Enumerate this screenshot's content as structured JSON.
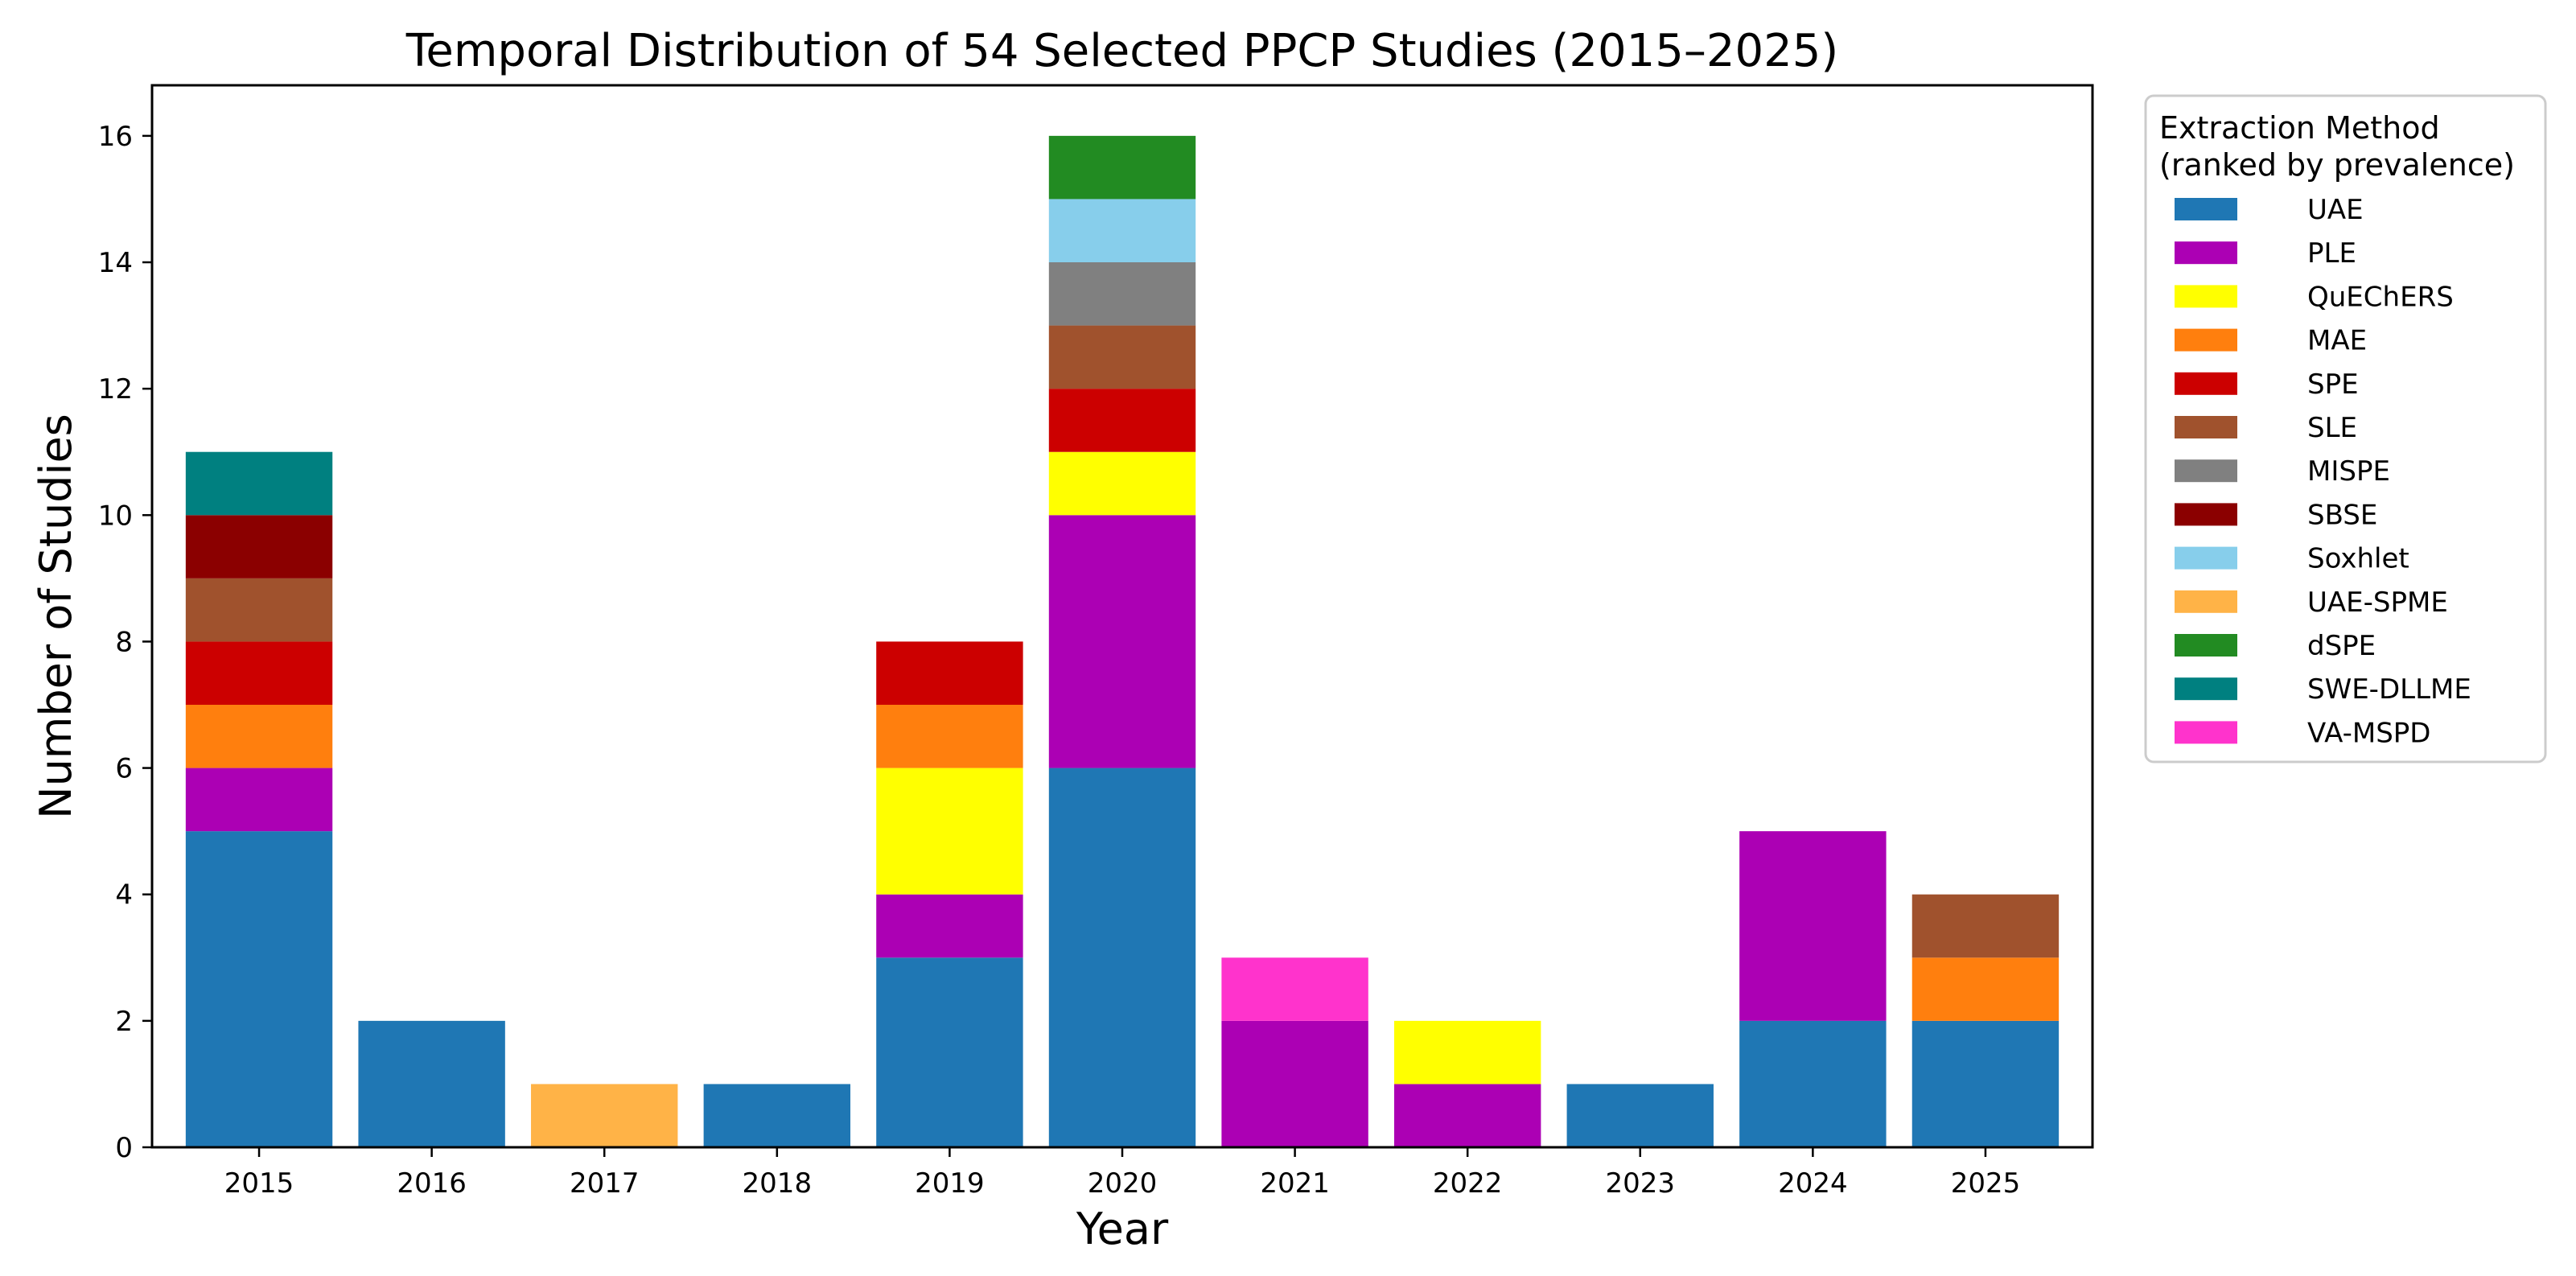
{
  "chart_data": {
    "type": "bar",
    "stacked": true,
    "title": "Temporal Distribution of 54 Selected PPCP Studies (2015–2025)",
    "xlabel": "Year",
    "ylabel": "Number of Studies",
    "ylim": [
      0,
      16.8
    ],
    "yticks": [
      0,
      2,
      4,
      6,
      8,
      10,
      12,
      14,
      16
    ],
    "categories": [
      "2015",
      "2016",
      "2017",
      "2018",
      "2019",
      "2020",
      "2021",
      "2022",
      "2023",
      "2024",
      "2025"
    ],
    "legend": {
      "title_lines": [
        "Extraction Method",
        "(ranked by prevalence)"
      ],
      "placement": "outside-right"
    },
    "series": [
      {
        "name": "UAE",
        "color": "#1f77b4",
        "values": [
          5,
          2,
          0,
          1,
          3,
          6,
          0,
          0,
          1,
          2,
          2
        ]
      },
      {
        "name": "PLE",
        "color": "#ac00b4",
        "values": [
          1,
          0,
          0,
          0,
          1,
          4,
          2,
          1,
          0,
          3,
          0
        ]
      },
      {
        "name": "QuEChERS",
        "color": "#ffff00",
        "values": [
          0,
          0,
          0,
          0,
          2,
          1,
          0,
          1,
          0,
          0,
          0
        ]
      },
      {
        "name": "MAE",
        "color": "#ff7f0e",
        "values": [
          1,
          0,
          0,
          0,
          1,
          0,
          0,
          0,
          0,
          0,
          1
        ]
      },
      {
        "name": "SPE",
        "color": "#cc0000",
        "values": [
          1,
          0,
          0,
          0,
          1,
          1,
          0,
          0,
          0,
          0,
          0
        ]
      },
      {
        "name": "SLE",
        "color": "#a0522d",
        "values": [
          1,
          0,
          0,
          0,
          0,
          1,
          0,
          0,
          0,
          0,
          1
        ]
      },
      {
        "name": "MISPE",
        "color": "#808080",
        "values": [
          0,
          0,
          0,
          0,
          0,
          1,
          0,
          0,
          0,
          0,
          0
        ]
      },
      {
        "name": "SBSE",
        "color": "#8b0000",
        "values": [
          1,
          0,
          0,
          0,
          0,
          0,
          0,
          0,
          0,
          0,
          0
        ]
      },
      {
        "name": "Soxhlet",
        "color": "#87ceeb",
        "values": [
          0,
          0,
          0,
          0,
          0,
          1,
          0,
          0,
          0,
          0,
          0
        ]
      },
      {
        "name": "UAE-SPME",
        "color": "#ffb347",
        "values": [
          0,
          0,
          1,
          0,
          0,
          0,
          0,
          0,
          0,
          0,
          0
        ]
      },
      {
        "name": "dSPE",
        "color": "#228b22",
        "values": [
          0,
          0,
          0,
          0,
          0,
          1,
          0,
          0,
          0,
          0,
          0
        ]
      },
      {
        "name": "SWE-DLLME",
        "color": "#008080",
        "values": [
          1,
          0,
          0,
          0,
          0,
          0,
          0,
          0,
          0,
          0,
          0
        ]
      },
      {
        "name": "VA-MSPD",
        "color": "#ff33cc",
        "values": [
          0,
          0,
          0,
          0,
          0,
          0,
          1,
          0,
          0,
          0,
          0
        ]
      }
    ]
  }
}
